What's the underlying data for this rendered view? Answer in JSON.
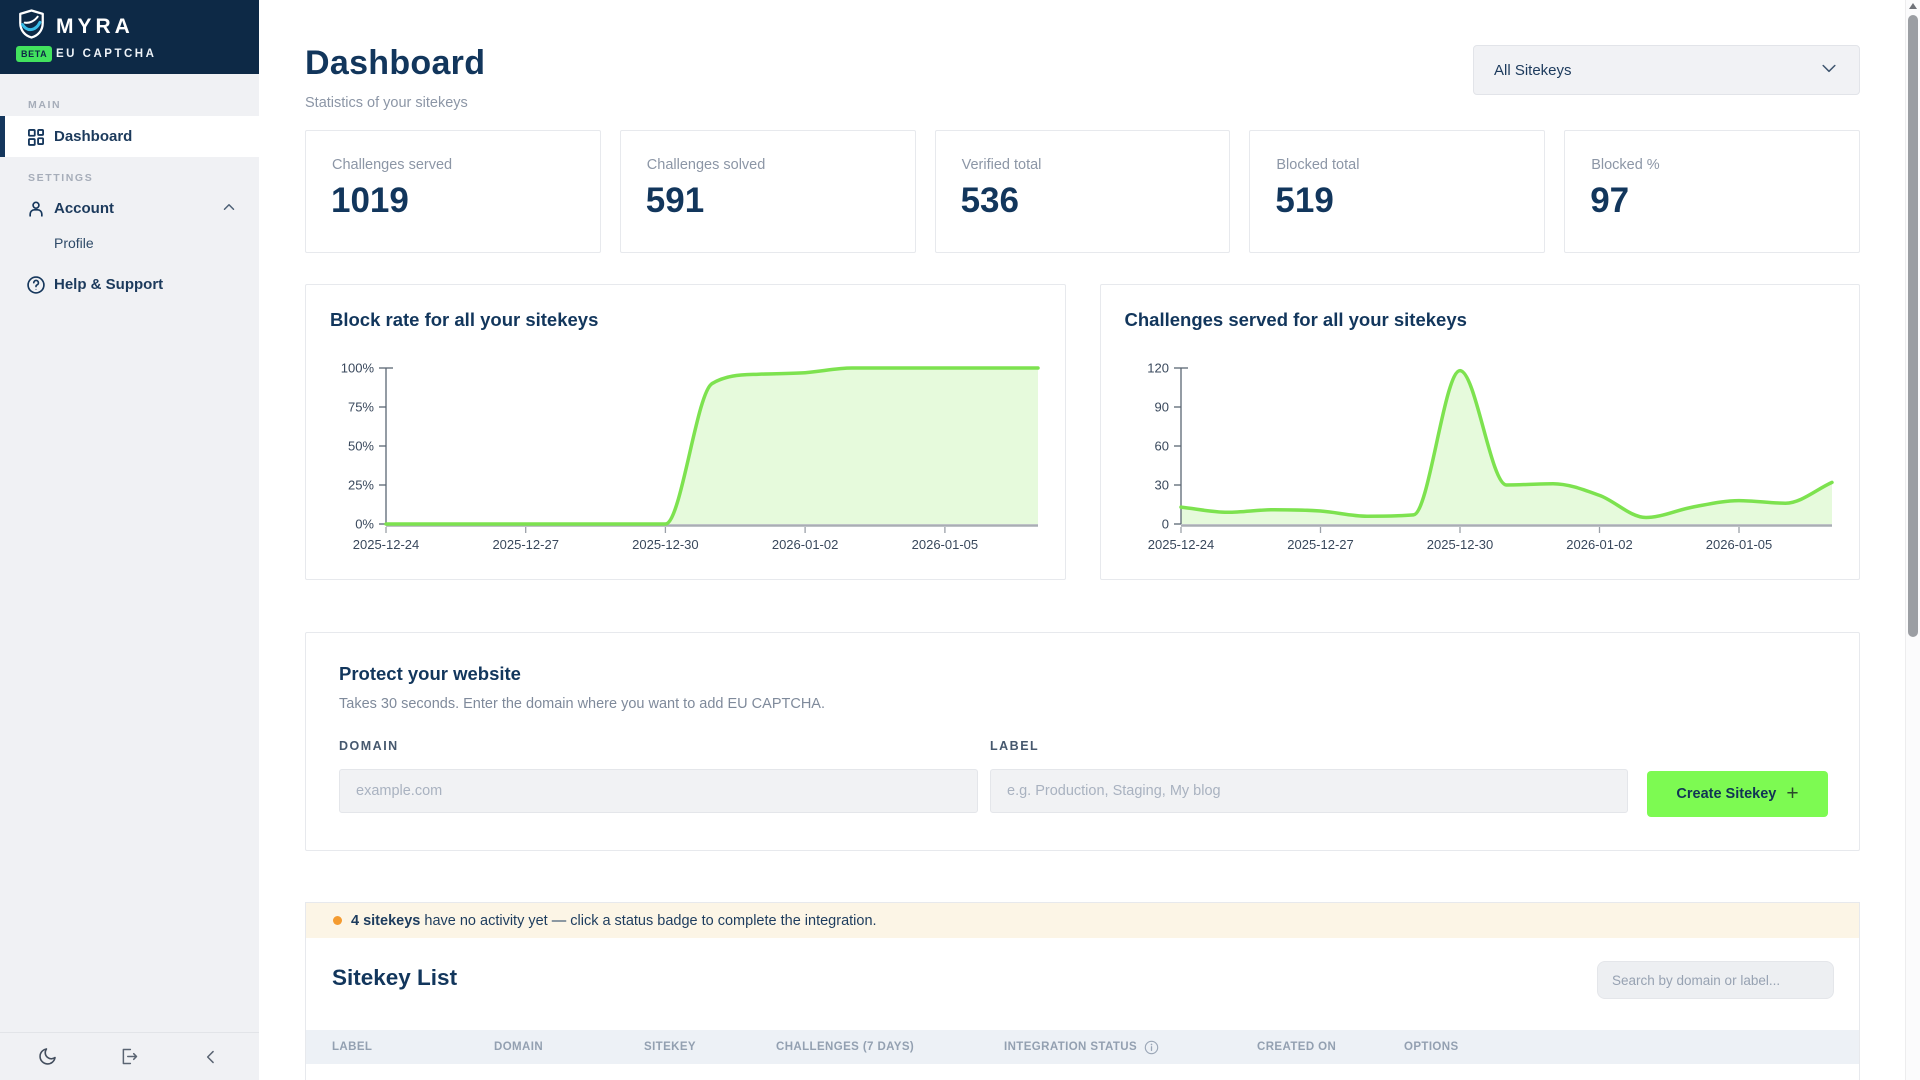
{
  "brand": {
    "name": "MYRA",
    "beta_badge": "BETA",
    "product": "EU CAPTCHA"
  },
  "sidebar": {
    "section_main": "MAIN",
    "section_settings": "SETTINGS",
    "dashboard": "Dashboard",
    "account": "Account",
    "profile": "Profile",
    "help": "Help & Support"
  },
  "header": {
    "title": "Dashboard",
    "subtitle": "Statistics of your sitekeys",
    "filter_value": "All Sitekeys"
  },
  "stats": [
    {
      "label": "Challenges served",
      "value": "1019"
    },
    {
      "label": "Challenges solved",
      "value": "591"
    },
    {
      "label": "Verified total",
      "value": "536"
    },
    {
      "label": "Blocked total",
      "value": "519"
    },
    {
      "label": "Blocked %",
      "value": "97"
    }
  ],
  "chart_data": [
    {
      "type": "area",
      "title": "Block rate for all your sitekeys",
      "x": [
        "2025-12-24",
        "2025-12-25",
        "2025-12-26",
        "2025-12-27",
        "2025-12-28",
        "2025-12-29",
        "2025-12-30",
        "2025-12-31",
        "2026-01-01",
        "2026-01-02",
        "2026-01-03",
        "2026-01-04",
        "2026-01-05",
        "2026-01-06",
        "2026-01-07"
      ],
      "values": [
        0,
        0,
        0,
        0,
        0,
        0,
        0,
        90,
        96,
        97,
        100,
        100,
        100,
        100,
        100
      ],
      "ylim": [
        0,
        100
      ],
      "y_ticks": [
        0,
        25,
        50,
        75,
        100
      ],
      "y_tick_suffix": "%",
      "x_tick_labels": [
        "2025-12-24",
        "2025-12-27",
        "2025-12-30",
        "2026-01-02",
        "2026-01-05"
      ],
      "grid": false,
      "legend": false,
      "line_color": "#7de24f",
      "fill_color": "#e6fadc"
    },
    {
      "type": "area",
      "title": "Challenges served for all your sitekeys",
      "x": [
        "2025-12-24",
        "2025-12-25",
        "2025-12-26",
        "2025-12-27",
        "2025-12-28",
        "2025-12-29",
        "2025-12-30",
        "2025-12-31",
        "2026-01-01",
        "2026-01-02",
        "2026-01-03",
        "2026-01-04",
        "2026-01-05",
        "2026-01-06",
        "2026-01-07"
      ],
      "values": [
        13,
        9,
        11,
        10,
        6,
        7,
        118,
        30,
        31,
        22,
        5,
        13,
        18,
        16,
        32
      ],
      "ylim": [
        0,
        120
      ],
      "y_ticks": [
        0,
        30,
        60,
        90,
        120
      ],
      "y_tick_suffix": "",
      "x_tick_labels": [
        "2025-12-24",
        "2025-12-27",
        "2025-12-30",
        "2026-01-02",
        "2026-01-05"
      ],
      "grid": false,
      "legend": false,
      "line_color": "#7de24f",
      "fill_color": "#e6fadc"
    }
  ],
  "protect": {
    "title": "Protect your website",
    "subtitle": "Takes 30 seconds. Enter the domain where you want to add EU CAPTCHA.",
    "domain_label": "DOMAIN",
    "domain_placeholder": "example.com",
    "label_label": "LABEL",
    "label_placeholder": "e.g. Production, Staging, My blog",
    "create_button": "Create Sitekey",
    "create_button_icon": "+"
  },
  "notice": {
    "highlight": "4 sitekeys",
    "text": "have no activity yet — click a status badge to complete the integration."
  },
  "sitekey_list": {
    "title": "Sitekey List",
    "search_placeholder": "Search by domain or label...",
    "columns": [
      "LABEL",
      "DOMAIN",
      "SITEKEY",
      "CHALLENGES (7 DAYS)",
      "INTEGRATION STATUS",
      "CREATED ON",
      "OPTIONS"
    ]
  },
  "icons": {
    "logo": "shield-icon",
    "nav_dashboard": "grid-icon",
    "nav_account": "user-icon",
    "nav_help": "question-circle-icon",
    "account_expand": "chevron-up-icon",
    "filter_expand": "chevron-down-icon",
    "integration_status_info": "info-icon",
    "footer": [
      "moon-icon",
      "logout-icon",
      "chevron-left-icon"
    ]
  },
  "colors": {
    "sidebar_header_bg": "#0d2946",
    "navy": "#12365c",
    "accent_green": "#7dfa52",
    "beta_badge_green": "#42e25e",
    "logo_cyan": "#38bde8",
    "chart_line": "#7de24f",
    "chart_fill": "#e6fadc",
    "notice_bg": "#fcf5e6",
    "notice_dot": "#f49b30",
    "table_header_bg": "#edf1f6"
  }
}
